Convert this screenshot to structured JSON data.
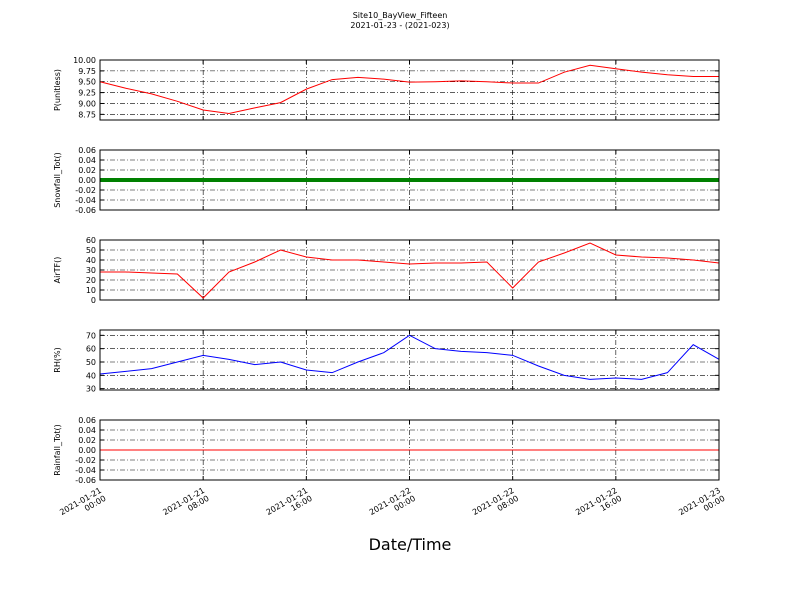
{
  "title": "Site10_BayView_Fifteen",
  "subtitle": "2021-01-23 - (2021-023)",
  "xlabel": "Date/Time",
  "chart_data": [
    {
      "type": "line",
      "ylabel": "P(unitless)",
      "color": "#ff0000",
      "x": [
        "2021-01-21 00:00",
        "2021-01-21 02:00",
        "2021-01-21 04:00",
        "2021-01-21 06:00",
        "2021-01-21 08:00",
        "2021-01-21 10:00",
        "2021-01-21 12:00",
        "2021-01-21 14:00",
        "2021-01-21 16:00",
        "2021-01-21 18:00",
        "2021-01-21 20:00",
        "2021-01-21 22:00",
        "2021-01-22 00:00",
        "2021-01-22 02:00",
        "2021-01-22 04:00",
        "2021-01-22 06:00",
        "2021-01-22 08:00",
        "2021-01-22 10:00",
        "2021-01-22 12:00",
        "2021-01-22 14:00",
        "2021-01-22 16:00",
        "2021-01-22 18:00",
        "2021-01-22 20:00",
        "2021-01-22 22:00",
        "2021-01-23 00:00"
      ],
      "values": [
        9.5,
        9.35,
        9.22,
        9.05,
        8.85,
        8.77,
        8.9,
        9.02,
        9.33,
        9.55,
        9.6,
        9.56,
        9.49,
        9.5,
        9.52,
        9.5,
        9.47,
        9.47,
        9.72,
        9.88,
        9.8,
        9.72,
        9.66,
        9.62,
        9.62
      ],
      "ylim": [
        8.62,
        10.0
      ],
      "yticks": [
        8.75,
        {
          "value": 9,
          "label": "9.00"
        },
        9.25,
        {
          "value": 9.5,
          "label": "9.50"
        },
        9.75,
        {
          "value": 10,
          "label": "10.00"
        }
      ],
      "xlim": [
        "2021-01-21 00:00",
        "2021-01-23 00:00"
      ],
      "xticks": [
        "2021-01-21 00:00",
        "2021-01-21 08:00",
        "2021-01-21 16:00",
        "2021-01-22 00:00",
        "2021-01-22 08:00",
        "2021-01-22 16:00",
        "2021-01-23 00:00"
      ],
      "grid": true
    },
    {
      "type": "line",
      "ylabel": "Snowfall_Tot()",
      "color": "#008000",
      "x": [
        "2021-01-21 00:00",
        "2021-01-21 02:00",
        "2021-01-21 04:00",
        "2021-01-21 06:00",
        "2021-01-21 08:00",
        "2021-01-21 10:00",
        "2021-01-21 12:00",
        "2021-01-21 14:00",
        "2021-01-21 16:00",
        "2021-01-21 18:00",
        "2021-01-21 20:00",
        "2021-01-21 22:00",
        "2021-01-22 00:00",
        "2021-01-22 02:00",
        "2021-01-22 04:00",
        "2021-01-22 06:00",
        "2021-01-22 08:00",
        "2021-01-22 10:00",
        "2021-01-22 12:00",
        "2021-01-22 14:00",
        "2021-01-22 16:00",
        "2021-01-22 18:00",
        "2021-01-22 20:00",
        "2021-01-22 22:00",
        "2021-01-23 00:00"
      ],
      "values": [
        0,
        0,
        0,
        0,
        0,
        0,
        0,
        0,
        0,
        0,
        0,
        0,
        0,
        0,
        0,
        0,
        0,
        0,
        0,
        0,
        0,
        0,
        0,
        0,
        0
      ],
      "ylim": [
        -0.06,
        0.06
      ],
      "yticks": [
        -0.06,
        -0.04,
        -0.02,
        {
          "value": 0,
          "label": "0.00"
        },
        0.02,
        0.04,
        0.06
      ],
      "xlim": [
        "2021-01-21 00:00",
        "2021-01-23 00:00"
      ],
      "xticks": [
        "2021-01-21 00:00",
        "2021-01-21 08:00",
        "2021-01-21 16:00",
        "2021-01-22 00:00",
        "2021-01-22 08:00",
        "2021-01-22 16:00",
        "2021-01-23 00:00"
      ],
      "grid": true
    },
    {
      "type": "line",
      "ylabel": "AirTF()",
      "color": "#ff0000",
      "x": [
        "2021-01-21 00:00",
        "2021-01-21 02:00",
        "2021-01-21 04:00",
        "2021-01-21 06:00",
        "2021-01-21 08:00",
        "2021-01-21 10:00",
        "2021-01-21 12:00",
        "2021-01-21 14:00",
        "2021-01-21 16:00",
        "2021-01-21 18:00",
        "2021-01-21 20:00",
        "2021-01-21 22:00",
        "2021-01-22 00:00",
        "2021-01-22 02:00",
        "2021-01-22 04:00",
        "2021-01-22 06:00",
        "2021-01-22 08:00",
        "2021-01-22 10:00",
        "2021-01-22 12:00",
        "2021-01-22 14:00",
        "2021-01-22 16:00",
        "2021-01-22 18:00",
        "2021-01-22 20:00",
        "2021-01-22 22:00",
        "2021-01-23 00:00"
      ],
      "values": [
        28,
        28,
        27,
        26,
        2,
        28,
        38,
        50,
        43,
        40,
        40,
        38,
        36,
        37,
        37,
        38,
        12,
        38,
        47,
        57,
        45,
        43,
        42,
        40,
        37
      ],
      "ylim": [
        0,
        60
      ],
      "yticks": [
        0,
        10,
        20,
        30,
        40,
        50,
        60
      ],
      "xlim": [
        "2021-01-21 00:00",
        "2021-01-23 00:00"
      ],
      "xticks": [
        "2021-01-21 00:00",
        "2021-01-21 08:00",
        "2021-01-21 16:00",
        "2021-01-22 00:00",
        "2021-01-22 08:00",
        "2021-01-22 16:00",
        "2021-01-23 00:00"
      ],
      "grid": true
    },
    {
      "type": "line",
      "ylabel": "RH(%)",
      "color": "#0000ff",
      "x": [
        "2021-01-21 00:00",
        "2021-01-21 02:00",
        "2021-01-21 04:00",
        "2021-01-21 06:00",
        "2021-01-21 08:00",
        "2021-01-21 10:00",
        "2021-01-21 12:00",
        "2021-01-21 14:00",
        "2021-01-21 16:00",
        "2021-01-21 18:00",
        "2021-01-21 20:00",
        "2021-01-21 22:00",
        "2021-01-22 00:00",
        "2021-01-22 02:00",
        "2021-01-22 04:00",
        "2021-01-22 06:00",
        "2021-01-22 08:00",
        "2021-01-22 10:00",
        "2021-01-22 12:00",
        "2021-01-22 14:00",
        "2021-01-22 16:00",
        "2021-01-22 18:00",
        "2021-01-22 20:00",
        "2021-01-22 22:00",
        "2021-01-23 00:00"
      ],
      "values": [
        41,
        43,
        45,
        50,
        55,
        52,
        48,
        50,
        44,
        42,
        50,
        57,
        70,
        60,
        58,
        57,
        55,
        47,
        40,
        37,
        38,
        37,
        42,
        63,
        52
      ],
      "ylim": [
        29,
        74
      ],
      "yticks": [
        30,
        40,
        50,
        60,
        70
      ],
      "xlim": [
        "2021-01-21 00:00",
        "2021-01-23 00:00"
      ],
      "xticks": [
        "2021-01-21 00:00",
        "2021-01-21 08:00",
        "2021-01-21 16:00",
        "2021-01-22 00:00",
        "2021-01-22 08:00",
        "2021-01-22 16:00",
        "2021-01-23 00:00"
      ],
      "grid": true
    },
    {
      "type": "line",
      "ylabel": "Rainfall_Tot()",
      "color": "#ff0000",
      "x": [
        "2021-01-21 00:00",
        "2021-01-21 02:00",
        "2021-01-21 04:00",
        "2021-01-21 06:00",
        "2021-01-21 08:00",
        "2021-01-21 10:00",
        "2021-01-21 12:00",
        "2021-01-21 14:00",
        "2021-01-21 16:00",
        "2021-01-21 18:00",
        "2021-01-21 20:00",
        "2021-01-21 22:00",
        "2021-01-22 00:00",
        "2021-01-22 02:00",
        "2021-01-22 04:00",
        "2021-01-22 06:00",
        "2021-01-22 08:00",
        "2021-01-22 10:00",
        "2021-01-22 12:00",
        "2021-01-22 14:00",
        "2021-01-22 16:00",
        "2021-01-22 18:00",
        "2021-01-22 20:00",
        "2021-01-22 22:00",
        "2021-01-23 00:00"
      ],
      "values": [
        0,
        0,
        0,
        0,
        0,
        0,
        0,
        0,
        0,
        0,
        0,
        0,
        0,
        0,
        0,
        0,
        0,
        0,
        0,
        0,
        0,
        0,
        0,
        0,
        0
      ],
      "ylim": [
        -0.06,
        0.06
      ],
      "yticks": [
        -0.06,
        -0.04,
        -0.02,
        {
          "value": 0,
          "label": "0.00"
        },
        0.02,
        0.04,
        0.06
      ],
      "xlim": [
        "2021-01-21 00:00",
        "2021-01-23 00:00"
      ],
      "xticks": [
        "2021-01-21 00:00",
        "2021-01-21 08:00",
        "2021-01-21 16:00",
        "2021-01-22 00:00",
        "2021-01-22 08:00",
        "2021-01-22 16:00",
        "2021-01-23 00:00"
      ],
      "grid": true
    }
  ]
}
